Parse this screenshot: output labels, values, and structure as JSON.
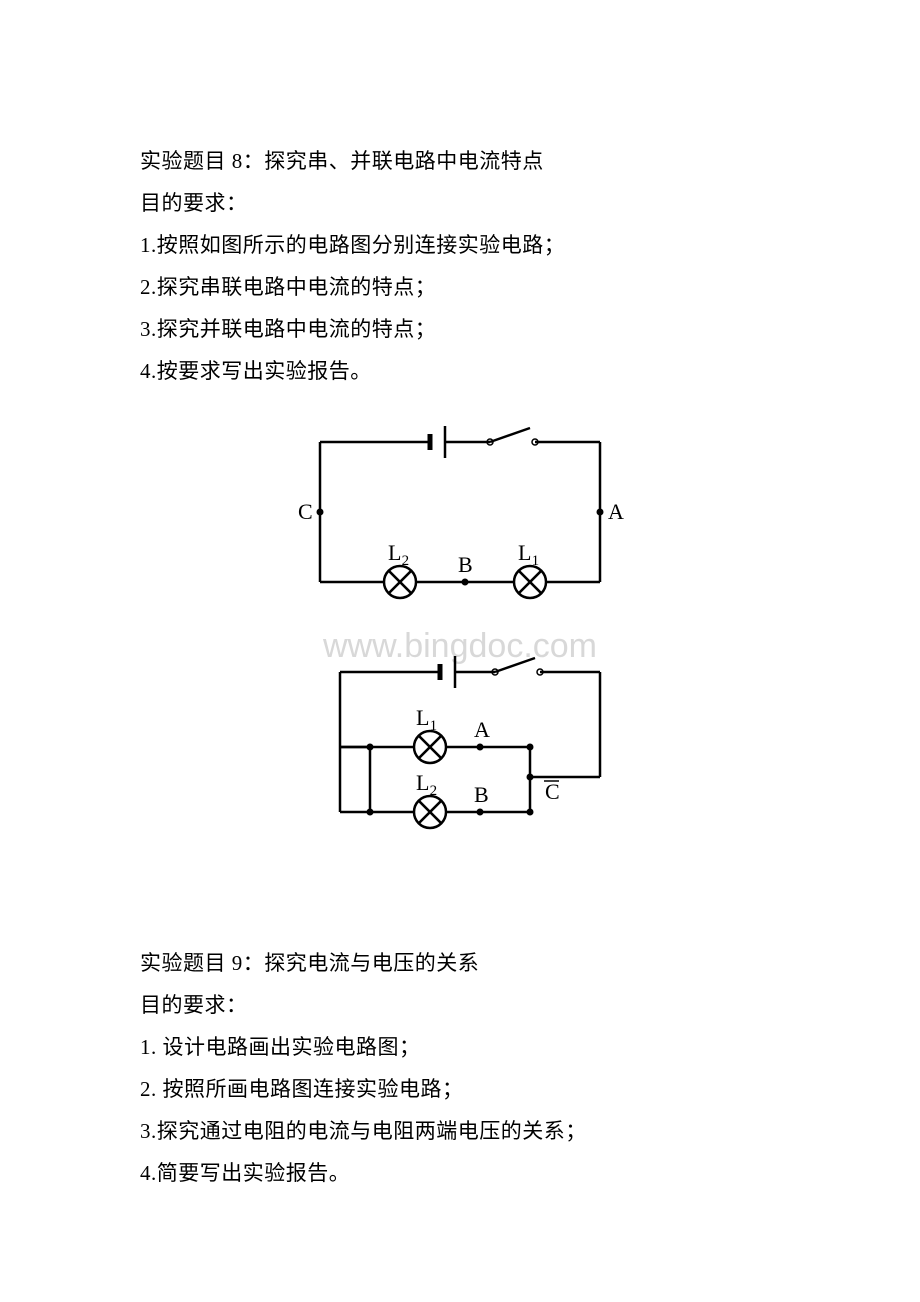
{
  "experiment8": {
    "title": "实验题目 8：探究串、并联电路中电流特点",
    "subhead": "目的要求：",
    "items": [
      "1.按照如图所示的电路图分别连接实验电路；",
      "2.探究串联电路中电流的特点；",
      "3.探究并联电路中电流的特点；",
      "4.按要求写出实验报告。"
    ]
  },
  "experiment9": {
    "title": "实验题目 9：探究电流与电压的关系",
    "subhead": "目的要求：",
    "items": [
      "1. 设计电路画出实验电路图；",
      "2. 按照所画电路图连接实验电路；",
      "3.探究通过电阻的电流与电阻两端电压的关系；",
      "4.简要写出实验报告。"
    ]
  },
  "watermark": "www.bingdoc.com",
  "diagram1": {
    "type": "circuit-series",
    "stroke": "#000000",
    "stroke_width": 2.5,
    "label_font": "Times New Roman, serif",
    "label_size": 22,
    "sub_size": 15,
    "labels": {
      "A": "A",
      "B": "B",
      "C": "C",
      "L1": "L",
      "L1s": "1",
      "L2": "L",
      "L2s": "2"
    }
  },
  "diagram2": {
    "type": "circuit-parallel",
    "stroke": "#000000",
    "stroke_width": 2.5,
    "label_font": "Times New Roman, serif",
    "label_size": 22,
    "sub_size": 15,
    "labels": {
      "A": "A",
      "B": "B",
      "C": "C",
      "L1": "L",
      "L1s": "1",
      "L2": "L",
      "L2s": "2"
    }
  }
}
